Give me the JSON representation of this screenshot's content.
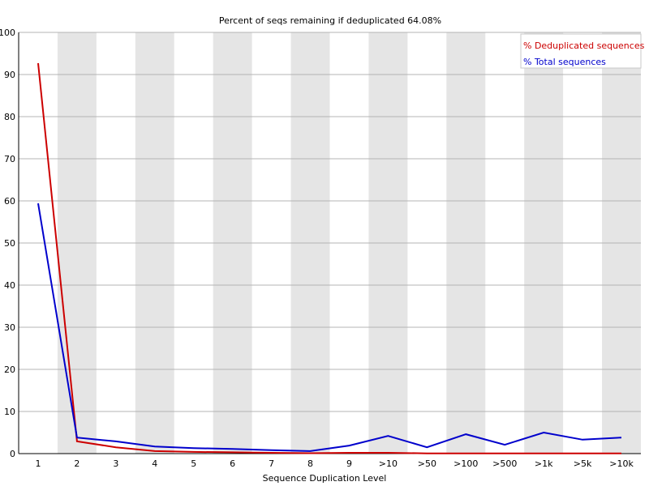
{
  "chart_data": {
    "type": "line",
    "title": "Percent of seqs remaining if deduplicated 64.08%",
    "xlabel": "Sequence Duplication Level",
    "ylabel": "",
    "ylim": [
      0,
      100
    ],
    "yticks": [
      0,
      10,
      20,
      30,
      40,
      50,
      60,
      70,
      80,
      90,
      100
    ],
    "categories": [
      "1",
      "2",
      "3",
      "4",
      "5",
      "6",
      "7",
      "8",
      "9",
      ">10",
      ">50",
      ">100",
      ">500",
      ">1k",
      ">5k",
      ">10k"
    ],
    "grid": true,
    "legend_position": "top-right",
    "series": [
      {
        "name": "% Deduplicated sequences",
        "color": "#cc0000",
        "values": [
          92.7,
          2.9,
          1.5,
          0.6,
          0.4,
          0.3,
          0.2,
          0.1,
          0.2,
          0.2,
          0.05,
          0.05,
          0.05,
          0.05,
          0.03,
          0.03
        ]
      },
      {
        "name": "% Total sequences",
        "color": "#0000cc",
        "values": [
          59.4,
          3.8,
          2.9,
          1.7,
          1.3,
          1.1,
          0.8,
          0.6,
          1.9,
          4.2,
          1.5,
          4.6,
          2.1,
          5.0,
          3.3,
          3.8
        ]
      }
    ]
  }
}
